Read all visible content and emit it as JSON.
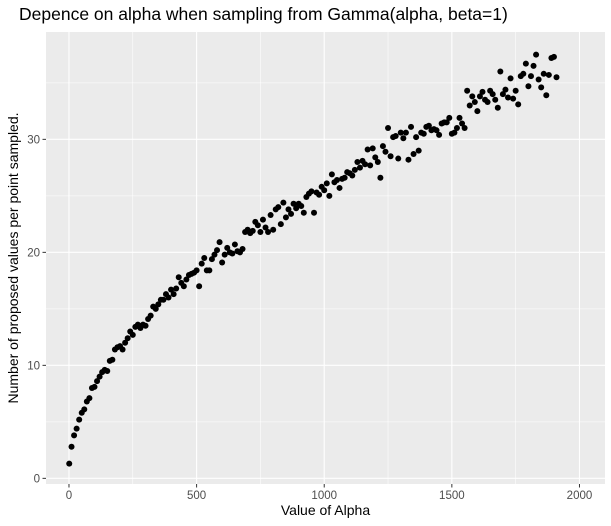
{
  "chart_data": {
    "type": "scatter",
    "title": "Depence on alpha when sampling from Gamma(alpha, beta=1)",
    "xlabel": "Value of Alpha",
    "ylabel": "Number of proposed values per point sampled.",
    "xlim": [
      -90,
      2100
    ],
    "ylim": [
      -0.5,
      39.5
    ],
    "x_ticks": [
      0,
      500,
      1000,
      1500,
      2000
    ],
    "x_tick_labels": [
      "0",
      "500",
      "1000",
      "1500",
      "2000"
    ],
    "y_ticks": [
      0,
      10,
      20,
      30
    ],
    "y_tick_labels": [
      "0",
      "10",
      "20",
      "30"
    ],
    "x_minor": [
      250,
      750,
      1250,
      1750
    ],
    "y_minor": [
      5,
      15,
      25,
      35
    ],
    "grid": true,
    "legend": "none",
    "panel_color": "#ebebeb",
    "grid_color": "#ffffff",
    "point_color": "#000000",
    "points": [
      [
        1,
        1.3
      ],
      [
        10,
        2.8
      ],
      [
        20,
        3.8
      ],
      [
        30,
        4.4
      ],
      [
        40,
        5.2
      ],
      [
        50,
        5.8
      ],
      [
        60,
        6.1
      ],
      [
        70,
        6.8
      ],
      [
        80,
        7.1
      ],
      [
        90,
        8.0
      ],
      [
        100,
        8.1
      ],
      [
        110,
        8.6
      ],
      [
        120,
        9.0
      ],
      [
        130,
        9.4
      ],
      [
        140,
        9.6
      ],
      [
        150,
        9.5
      ],
      [
        160,
        10.4
      ],
      [
        170,
        10.5
      ],
      [
        180,
        11.4
      ],
      [
        190,
        11.6
      ],
      [
        200,
        11.7
      ],
      [
        210,
        11.4
      ],
      [
        220,
        12.0
      ],
      [
        230,
        12.4
      ],
      [
        240,
        13.0
      ],
      [
        250,
        12.7
      ],
      [
        260,
        13.4
      ],
      [
        270,
        13.6
      ],
      [
        280,
        13.3
      ],
      [
        290,
        13.6
      ],
      [
        300,
        13.5
      ],
      [
        310,
        14.1
      ],
      [
        320,
        14.4
      ],
      [
        330,
        15.2
      ],
      [
        340,
        15.0
      ],
      [
        350,
        15.4
      ],
      [
        360,
        15.8
      ],
      [
        370,
        15.8
      ],
      [
        380,
        16.3
      ],
      [
        390,
        16.0
      ],
      [
        400,
        16.7
      ],
      [
        410,
        16.3
      ],
      [
        420,
        16.8
      ],
      [
        430,
        17.8
      ],
      [
        440,
        17.3
      ],
      [
        450,
        17.0
      ],
      [
        460,
        17.6
      ],
      [
        470,
        18.0
      ],
      [
        480,
        18.1
      ],
      [
        490,
        18.2
      ],
      [
        500,
        18.4
      ],
      [
        510,
        17.0
      ],
      [
        520,
        19.0
      ],
      [
        530,
        19.5
      ],
      [
        540,
        18.4
      ],
      [
        550,
        18.4
      ],
      [
        560,
        19.4
      ],
      [
        570,
        19.8
      ],
      [
        580,
        20.2
      ],
      [
        590,
        20.9
      ],
      [
        600,
        19.1
      ],
      [
        610,
        19.8
      ],
      [
        620,
        20.4
      ],
      [
        630,
        20.0
      ],
      [
        640,
        19.9
      ],
      [
        650,
        20.7
      ],
      [
        660,
        20.1
      ],
      [
        670,
        20.0
      ],
      [
        680,
        20.3
      ],
      [
        690,
        21.8
      ],
      [
        700,
        22.0
      ],
      [
        710,
        21.7
      ],
      [
        720,
        21.9
      ],
      [
        730,
        22.7
      ],
      [
        740,
        22.4
      ],
      [
        750,
        21.8
      ],
      [
        760,
        22.9
      ],
      [
        770,
        22.2
      ],
      [
        780,
        21.8
      ],
      [
        790,
        23.3
      ],
      [
        800,
        22.0
      ],
      [
        810,
        23.8
      ],
      [
        820,
        24.0
      ],
      [
        830,
        22.5
      ],
      [
        840,
        24.4
      ],
      [
        850,
        23.1
      ],
      [
        860,
        23.8
      ],
      [
        870,
        23.4
      ],
      [
        880,
        24.3
      ],
      [
        890,
        23.9
      ],
      [
        900,
        24.3
      ],
      [
        910,
        24.1
      ],
      [
        920,
        23.5
      ],
      [
        930,
        24.9
      ],
      [
        940,
        25.2
      ],
      [
        950,
        25.4
      ],
      [
        960,
        23.5
      ],
      [
        970,
        25.3
      ],
      [
        980,
        25.1
      ],
      [
        990,
        25.8
      ],
      [
        1000,
        25.5
      ],
      [
        1010,
        26.1
      ],
      [
        1020,
        25.0
      ],
      [
        1030,
        26.9
      ],
      [
        1040,
        26.2
      ],
      [
        1050,
        26.4
      ],
      [
        1060,
        25.7
      ],
      [
        1070,
        26.5
      ],
      [
        1080,
        26.6
      ],
      [
        1090,
        27.1
      ],
      [
        1100,
        27.0
      ],
      [
        1110,
        26.8
      ],
      [
        1120,
        27.3
      ],
      [
        1130,
        28.0
      ],
      [
        1140,
        27.5
      ],
      [
        1150,
        28.1
      ],
      [
        1160,
        27.8
      ],
      [
        1170,
        29.1
      ],
      [
        1180,
        27.7
      ],
      [
        1190,
        29.2
      ],
      [
        1200,
        28.4
      ],
      [
        1210,
        28.0
      ],
      [
        1220,
        26.6
      ],
      [
        1230,
        29.4
      ],
      [
        1240,
        28.9
      ],
      [
        1250,
        31.0
      ],
      [
        1260,
        28.5
      ],
      [
        1270,
        30.2
      ],
      [
        1280,
        30.3
      ],
      [
        1290,
        28.3
      ],
      [
        1300,
        30.6
      ],
      [
        1310,
        30.1
      ],
      [
        1320,
        30.6
      ],
      [
        1330,
        28.2
      ],
      [
        1340,
        31.1
      ],
      [
        1350,
        28.7
      ],
      [
        1360,
        30.2
      ],
      [
        1370,
        29.0
      ],
      [
        1380,
        30.6
      ],
      [
        1390,
        30.5
      ],
      [
        1400,
        31.1
      ],
      [
        1410,
        31.2
      ],
      [
        1420,
        30.8
      ],
      [
        1430,
        30.9
      ],
      [
        1440,
        30.8
      ],
      [
        1450,
        30.4
      ],
      [
        1460,
        31.4
      ],
      [
        1470,
        31.5
      ],
      [
        1480,
        31.5
      ],
      [
        1490,
        31.9
      ],
      [
        1500,
        30.5
      ],
      [
        1510,
        30.6
      ],
      [
        1520,
        31.0
      ],
      [
        1530,
        31.9
      ],
      [
        1540,
        31.4
      ],
      [
        1550,
        31.0
      ],
      [
        1560,
        34.3
      ],
      [
        1570,
        33.0
      ],
      [
        1580,
        33.8
      ],
      [
        1590,
        33.3
      ],
      [
        1600,
        32.5
      ],
      [
        1610,
        33.8
      ],
      [
        1620,
        34.2
      ],
      [
        1630,
        33.5
      ],
      [
        1640,
        33.3
      ],
      [
        1650,
        34.3
      ],
      [
        1660,
        34.0
      ],
      [
        1670,
        33.5
      ],
      [
        1680,
        32.8
      ],
      [
        1690,
        36.0
      ],
      [
        1700,
        34.0
      ],
      [
        1710,
        34.4
      ],
      [
        1720,
        33.7
      ],
      [
        1730,
        35.4
      ],
      [
        1740,
        33.6
      ],
      [
        1750,
        34.3
      ],
      [
        1760,
        33.1
      ],
      [
        1770,
        35.6
      ],
      [
        1780,
        35.8
      ],
      [
        1790,
        36.7
      ],
      [
        1800,
        34.7
      ],
      [
        1810,
        35.6
      ],
      [
        1820,
        36.5
      ],
      [
        1830,
        37.5
      ],
      [
        1840,
        35.3
      ],
      [
        1850,
        34.6
      ],
      [
        1860,
        35.8
      ],
      [
        1870,
        33.9
      ],
      [
        1880,
        35.7
      ],
      [
        1890,
        37.2
      ],
      [
        1900,
        37.3
      ],
      [
        1910,
        35.5
      ]
    ]
  }
}
